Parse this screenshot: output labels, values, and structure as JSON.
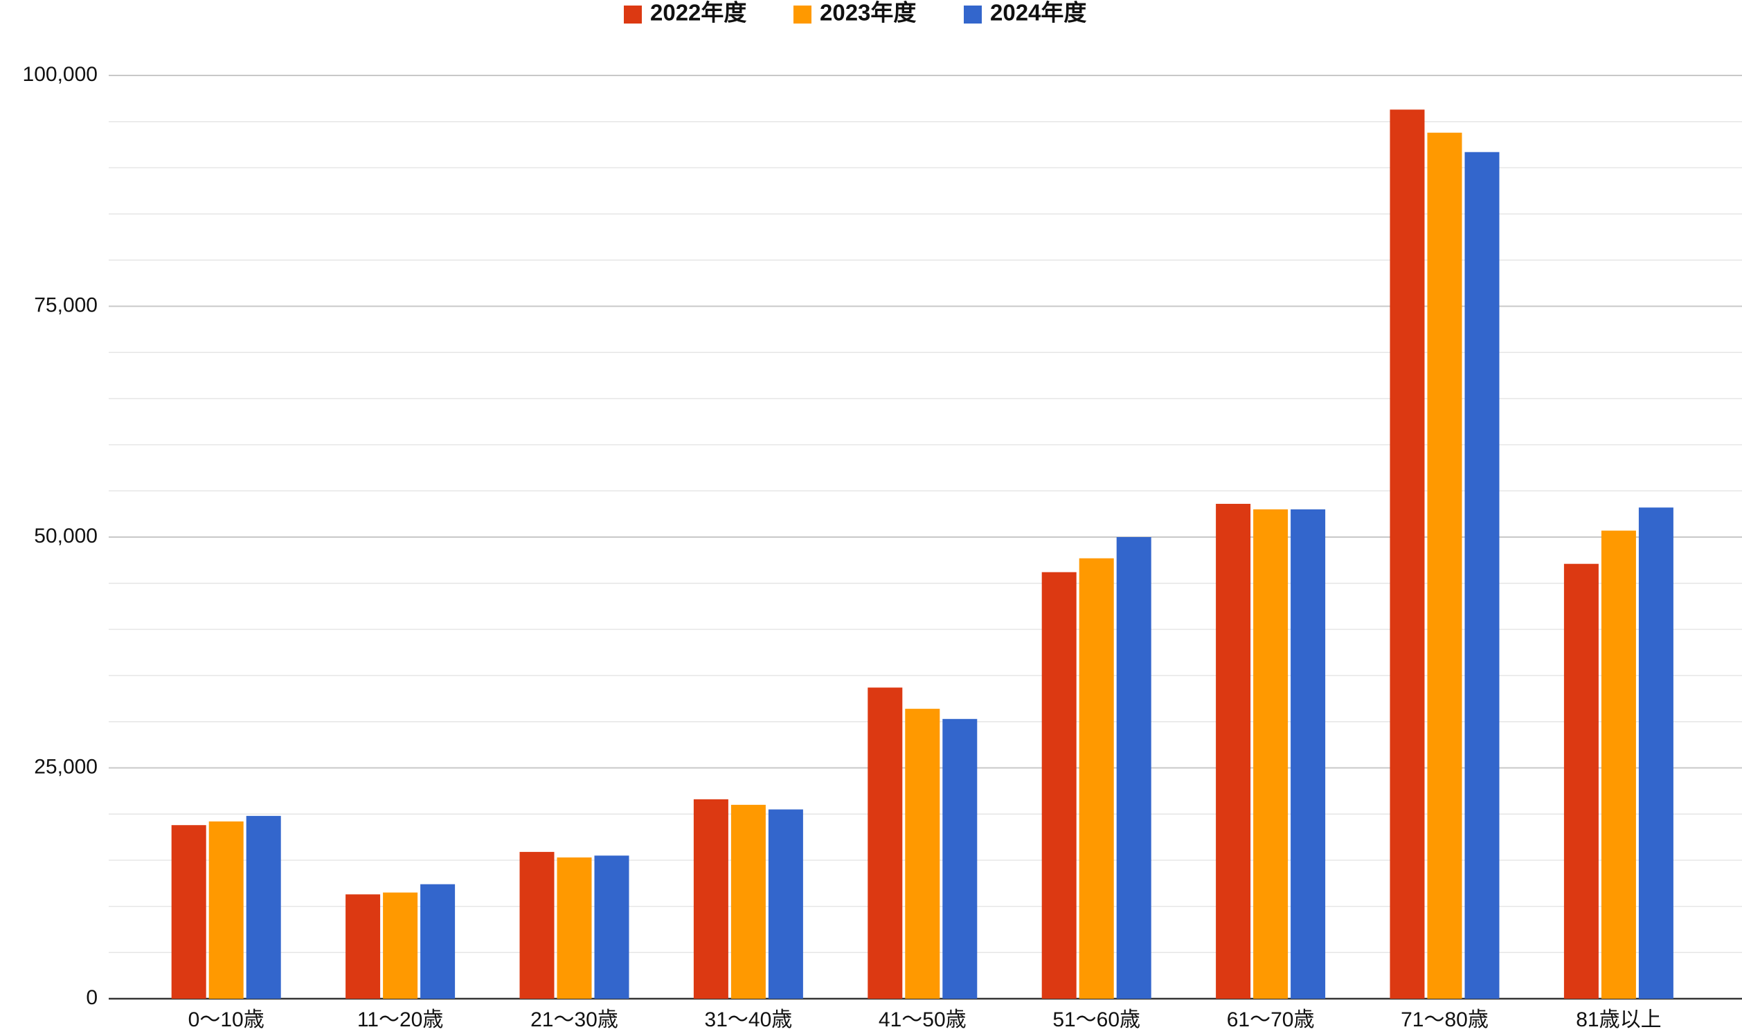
{
  "chart_data": {
    "type": "bar",
    "categories": [
      "0〜10歳",
      "11〜20歳",
      "21〜30歳",
      "31〜40歳",
      "41〜50歳",
      "51〜60歳",
      "61〜70歳",
      "71〜80歳",
      "81歳以上"
    ],
    "series": [
      {
        "name": "2022年度",
        "color": "#dc3912",
        "values": [
          18800,
          11300,
          15900,
          21600,
          33700,
          46200,
          53600,
          96300,
          47100
        ]
      },
      {
        "name": "2023年度",
        "color": "#ff9900",
        "values": [
          19200,
          11500,
          15300,
          21000,
          31400,
          47700,
          53000,
          93800,
          50700
        ]
      },
      {
        "name": "2024年度",
        "color": "#3366cc",
        "values": [
          19800,
          12400,
          15500,
          20500,
          30300,
          50000,
          53000,
          91700,
          53200
        ]
      }
    ],
    "ylim": [
      0,
      100000
    ],
    "yticks": [
      0,
      {
        "value": 25000,
        "label": "25,000"
      },
      {
        "value": 50000,
        "label": "50,000"
      },
      {
        "value": 75000,
        "label": "75,000"
      },
      {
        "value": 100000,
        "label": "100,000"
      }
    ],
    "grid": true,
    "minor_grid": 5,
    "legend": "top"
  }
}
